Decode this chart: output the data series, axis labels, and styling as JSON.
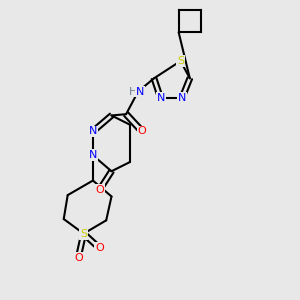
{
  "background_color": "#e8e8e8",
  "black": "#000000",
  "blue": "#0000ff",
  "red": "#ff0000",
  "yellow": "#cccc00",
  "gray": "#708090",
  "lw": 1.5,
  "fs": 8.0,
  "xlim": [
    -0.5,
    6.5
  ],
  "ylim": [
    -1.8,
    9.5
  ]
}
